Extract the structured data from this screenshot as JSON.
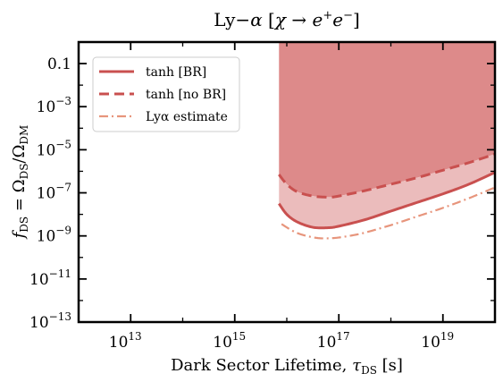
{
  "chart_data": {
    "type": "line",
    "title": "Ly−α [χ → e⁺e⁻]",
    "xlabel": "Dark Sector Lifetime, τ_DS [s]",
    "ylabel": "f_DS = Ω_DS/Ω_DM",
    "xscale": "log",
    "yscale": "log",
    "xlim_log10": [
      12.0,
      20.0
    ],
    "ylim_log10": [
      -13.0,
      0.0
    ],
    "x_ticks": [
      {
        "exp": 13,
        "label": "10",
        "sup": "13"
      },
      {
        "exp": 15,
        "label": "10",
        "sup": "15"
      },
      {
        "exp": 17,
        "label": "10",
        "sup": "17"
      },
      {
        "exp": 19,
        "label": "10",
        "sup": "19"
      }
    ],
    "y_ticks": [
      {
        "exp": -1,
        "label": "0.1",
        "sup": ""
      },
      {
        "exp": -3,
        "label": "10",
        "sup": "−3"
      },
      {
        "exp": -5,
        "label": "10",
        "sup": "−5"
      },
      {
        "exp": -7,
        "label": "10",
        "sup": "−7"
      },
      {
        "exp": -9,
        "label": "10",
        "sup": "−9"
      },
      {
        "exp": -11,
        "label": "10",
        "sup": "−11"
      },
      {
        "exp": -13,
        "label": "10",
        "sup": "−13"
      }
    ],
    "shaded_region": {
      "color": "#dd8a8a",
      "x_min_log10": 15.85,
      "note": "excluded region above tanh [no BR] curve"
    },
    "band_color": "#ebbcbc",
    "series": [
      {
        "name": "tanh [BR]",
        "style": "solid",
        "color": "#c9504f",
        "points_log10": [
          [
            15.85,
            -7.5
          ],
          [
            16.0,
            -8.0
          ],
          [
            16.2,
            -8.35
          ],
          [
            16.5,
            -8.6
          ],
          [
            16.8,
            -8.62
          ],
          [
            17.0,
            -8.55
          ],
          [
            17.5,
            -8.25
          ],
          [
            18.0,
            -7.85
          ],
          [
            18.5,
            -7.45
          ],
          [
            19.0,
            -7.05
          ],
          [
            19.5,
            -6.6
          ],
          [
            20.0,
            -6.05
          ]
        ]
      },
      {
        "name": "tanh [no BR]",
        "style": "dashed",
        "color": "#c9504f",
        "points_log10": [
          [
            15.85,
            -6.15
          ],
          [
            16.0,
            -6.6
          ],
          [
            16.2,
            -6.95
          ],
          [
            16.5,
            -7.15
          ],
          [
            16.8,
            -7.2
          ],
          [
            17.0,
            -7.15
          ],
          [
            17.5,
            -6.9
          ],
          [
            18.0,
            -6.6
          ],
          [
            18.5,
            -6.3
          ],
          [
            19.0,
            -5.95
          ],
          [
            19.5,
            -5.6
          ],
          [
            20.0,
            -5.2
          ]
        ]
      },
      {
        "name": "Lyα estimate",
        "style": "dashdot",
        "color": "#e7957c",
        "points_log10": [
          [
            15.9,
            -8.45
          ],
          [
            16.1,
            -8.75
          ],
          [
            16.3,
            -8.95
          ],
          [
            16.6,
            -9.1
          ],
          [
            16.9,
            -9.1
          ],
          [
            17.2,
            -9.0
          ],
          [
            17.5,
            -8.85
          ],
          [
            18.0,
            -8.5
          ],
          [
            18.5,
            -8.1
          ],
          [
            19.0,
            -7.7
          ],
          [
            19.5,
            -7.25
          ],
          [
            20.0,
            -6.75
          ]
        ]
      }
    ],
    "legend": {
      "placement": "upper-left",
      "entries": [
        "tanh [BR]",
        "tanh [no BR]",
        "Lyα estimate"
      ]
    }
  }
}
